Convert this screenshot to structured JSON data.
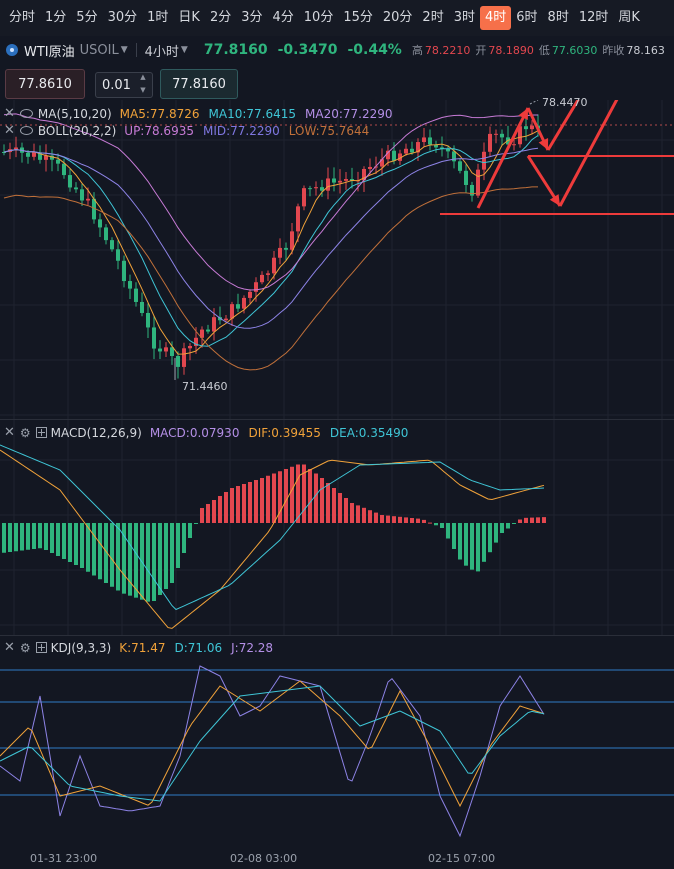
{
  "toolbar": {
    "timeframes": [
      "分时",
      "1分",
      "5分",
      "30分",
      "1时",
      "日K",
      "2分",
      "3分",
      "4分",
      "10分",
      "15分",
      "20分",
      "2时",
      "3时",
      "4时",
      "6时",
      "8时",
      "12时",
      "周K"
    ],
    "active_timeframe": "4时"
  },
  "symbol": {
    "name": "WTI原油",
    "code": "USOIL",
    "period": "4小时",
    "last_price": "77.8160",
    "change": "-0.3470",
    "change_pct": "-0.44%",
    "high_label": "高",
    "high_value": "78.2210",
    "open_label": "开",
    "open_value": "78.1890",
    "low_label": "低",
    "low_value": "77.6030",
    "prev_close_label": "昨收",
    "prev_close_value": "78.163"
  },
  "trade": {
    "sell_price": "77.8610",
    "quantity": "0.01",
    "buy_price": "77.8160"
  },
  "ma_legend": {
    "name": "MA(5,10,20)",
    "ma5": "MA5:77.8726",
    "ma10": "MA10:77.6415",
    "ma20": "MA20:77.2290"
  },
  "boll_legend": {
    "name": "BOLL(20,2,2)",
    "up": "UP:78.6935",
    "mid": "MID:77.2290",
    "low": "LOW:75.7644"
  },
  "macd_legend": {
    "name": "MACD(12,26,9)",
    "macd": "MACD:0.07930",
    "dif": "DIF:0.39455",
    "dea": "DEA:0.35490"
  },
  "kdj_legend": {
    "name": "KDJ(9,3,3)",
    "k": "K:71.47",
    "d": "D:71.06",
    "j": "J:72.28"
  },
  "annotations": {
    "low_marker": "71.4460",
    "high_marker": "78.4470"
  },
  "x_axis": {
    "dates": [
      "01-31 23:00",
      "02-08 03:00",
      "02-15 07:00"
    ]
  },
  "colors": {
    "up": "#2fb57e",
    "down": "#e2474f",
    "ma5": "#f0a23a",
    "ma10": "#3fc5d6",
    "ma20": "#8d83e6",
    "boll_up": "#c77bd6",
    "boll_mid": "#7f77e0",
    "boll_low": "#c0703a",
    "accent": "#f6704a",
    "arrow": "#ee3b3b"
  }
}
